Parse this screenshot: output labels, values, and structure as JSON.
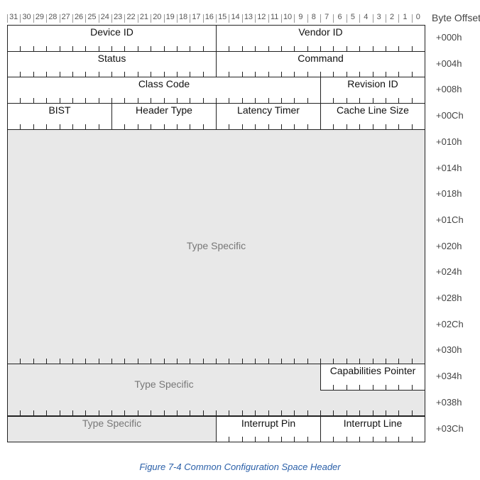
{
  "header": {
    "bit_numbers": [
      "31",
      "30",
      "29",
      "28",
      "27",
      "26",
      "25",
      "24",
      "23",
      "22",
      "21",
      "20",
      "19",
      "18",
      "17",
      "16",
      "15",
      "14",
      "13",
      "12",
      "11",
      "10",
      "9",
      "8",
      "7",
      "6",
      "5",
      "4",
      "3",
      "2",
      "1",
      "0"
    ],
    "byte_offset_label": "Byte Offset"
  },
  "rows": [
    {
      "offset": "+000h",
      "fields": [
        {
          "label": "Device ID",
          "bits": 16
        },
        {
          "label": "Vendor ID",
          "bits": 16
        }
      ]
    },
    {
      "offset": "+004h",
      "fields": [
        {
          "label": "Status",
          "bits": 16
        },
        {
          "label": "Command",
          "bits": 16
        }
      ]
    },
    {
      "offset": "+008h",
      "fields": [
        {
          "label": "Class Code",
          "bits": 24
        },
        {
          "label": "Revision ID",
          "bits": 8
        }
      ]
    },
    {
      "offset": "+00Ch",
      "fields": [
        {
          "label": "BIST",
          "bits": 8
        },
        {
          "label": "Header Type",
          "bits": 8
        },
        {
          "label": "Latency Timer",
          "bits": 8
        },
        {
          "label": "Cache Line Size",
          "bits": 8
        }
      ]
    }
  ],
  "type_specific_block": {
    "label": "Type Specific",
    "offsets": [
      "+010h",
      "+014h",
      "+018h",
      "+01Ch",
      "+020h",
      "+024h",
      "+028h",
      "+02Ch",
      "+030h"
    ]
  },
  "row_034": {
    "offset": "+034h",
    "type_specific_label": "Type Specific",
    "capabilities_pointer_label": "Capabilities Pointer"
  },
  "row_038": {
    "offset": "+038h"
  },
  "row_03c": {
    "offset": "+03Ch",
    "fields": [
      {
        "label": "Type Specific",
        "bits": 16,
        "grey": true
      },
      {
        "label": "Interrupt Pin",
        "bits": 8
      },
      {
        "label": "Interrupt Line",
        "bits": 8
      }
    ]
  },
  "caption": "Figure  7-4  Common Configuration Space Header"
}
